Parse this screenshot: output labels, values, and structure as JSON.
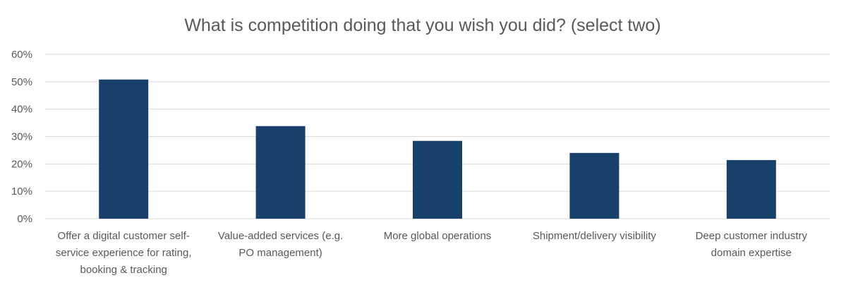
{
  "chart_data": {
    "type": "bar",
    "title": "What is competition doing that you wish you did? (select two)",
    "categories": [
      "Offer a digital customer self-service experience for rating, booking & tracking",
      "Value-added services (e.g. PO management)",
      "More global operations",
      "Shipment/delivery visibility",
      "Deep customer industry domain expertise"
    ],
    "category_lines": [
      [
        "Offer a digital customer self-",
        "service experience for rating,",
        "booking & tracking"
      ],
      [
        "Value-added services (e.g.",
        "PO management)"
      ],
      [
        "More global operations"
      ],
      [
        "Shipment/delivery visibility"
      ],
      [
        "Deep customer industry",
        "domain expertise"
      ]
    ],
    "values": [
      50.8,
      33.8,
      28.4,
      24.0,
      21.4
    ],
    "ylim": [
      0,
      60
    ],
    "yticks": [
      "0%",
      "10%",
      "20%",
      "30%",
      "40%",
      "50%",
      "60%"
    ],
    "grid": true,
    "bar_color": "#17406a",
    "xlabel": "",
    "ylabel": ""
  }
}
